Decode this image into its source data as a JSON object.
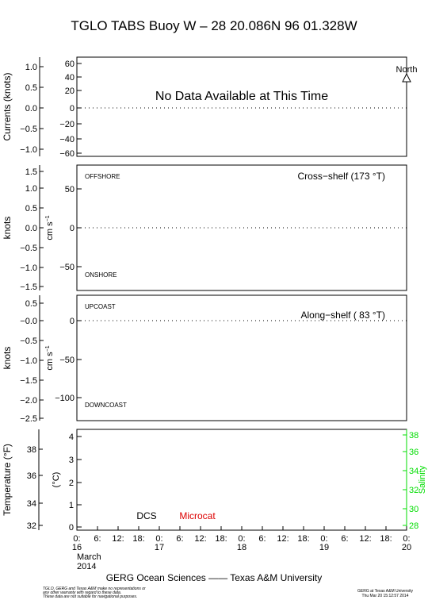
{
  "title": "TGLO TABS Buoy W – 28 20.086N  96 01.328W",
  "footer": "GERG Ocean Sciences —— Texas A&M University",
  "disclaimer": [
    "TGLO, GERG and Texas A&M make no representations or",
    "any other warranty with regard to these data.",
    "These data are not suitable for navigational purposes."
  ],
  "stamp": [
    "GERG at Texas A&M University",
    "Thu Mar 20 15:12:57 2014"
  ],
  "xaxis": {
    "hour_labels": [
      "0:",
      "6:",
      "12:",
      "18:",
      "0:",
      "6:",
      "12:",
      "18:",
      "0:",
      "6:",
      "12:",
      "18:",
      "0:",
      "6:",
      "12:",
      "18:",
      "0:"
    ],
    "day_labels": [
      "16",
      "17",
      "18",
      "19",
      "20"
    ],
    "month": "March",
    "year": "2014"
  },
  "chart_data": [
    {
      "type": "line",
      "name": "currents",
      "ylabel_left": "Currents (knots)",
      "left_ticks": [
        "1.0",
        "0.5",
        "0.0",
        "−0.5",
        "−1.0"
      ],
      "right_ticks": [
        "60",
        "40",
        "20",
        "0",
        "−20",
        "−40",
        "−60"
      ],
      "ylim": [
        -60,
        60
      ],
      "message": "No Data Available at This Time",
      "north_label": "North",
      "series": []
    },
    {
      "type": "line",
      "name": "cross-shelf",
      "ylabel_left": "knots",
      "ylabel_inner": "cm s",
      "ylabel_inner_sup": "−1",
      "left_ticks": [
        "1.5",
        "1.0",
        "0.5",
        "0.0",
        "−0.5",
        "−1.0",
        "−1.5"
      ],
      "inner_ticks": [
        "50",
        "0",
        "−50"
      ],
      "ylim": [
        -80,
        80
      ],
      "top_label": "OFFSHORE",
      "bottom_label": "ONSHORE",
      "annotation": "Cross−shelf (173 °T)",
      "series": []
    },
    {
      "type": "line",
      "name": "along-shelf",
      "ylabel_left": "knots",
      "ylabel_inner": "cm s",
      "ylabel_inner_sup": "−1",
      "left_ticks": [
        "0.5",
        "−0.0",
        "−0.5",
        "−1.0",
        "−1.5",
        "−2.0",
        "−2.5"
      ],
      "inner_ticks": [
        "0",
        "−50",
        "−100"
      ],
      "ylim": [
        -125,
        15
      ],
      "top_label": "UPCOAST",
      "bottom_label": "DOWNCOAST",
      "annotation": "Along−shelf ( 83 °T)",
      "series": []
    },
    {
      "type": "line",
      "name": "temperature-salinity",
      "ylabel_left": "Temperature (°F)",
      "ylabel_inner": "(°C)",
      "ylabel_right": "Salinity",
      "left_ticks": [
        "38",
        "36",
        "34",
        "32"
      ],
      "inner_ticks": [
        "4",
        "3",
        "2",
        "1",
        "0"
      ],
      "right_ticks": [
        "38",
        "36",
        "34",
        "32",
        "30",
        "28"
      ],
      "ylim": [
        0,
        4
      ],
      "legend": [
        "DCS",
        "Microcat"
      ],
      "colors": {
        "salinity": "#00dd00",
        "microcat": "#dd0000",
        "dcs": "#000000"
      },
      "series": []
    }
  ]
}
